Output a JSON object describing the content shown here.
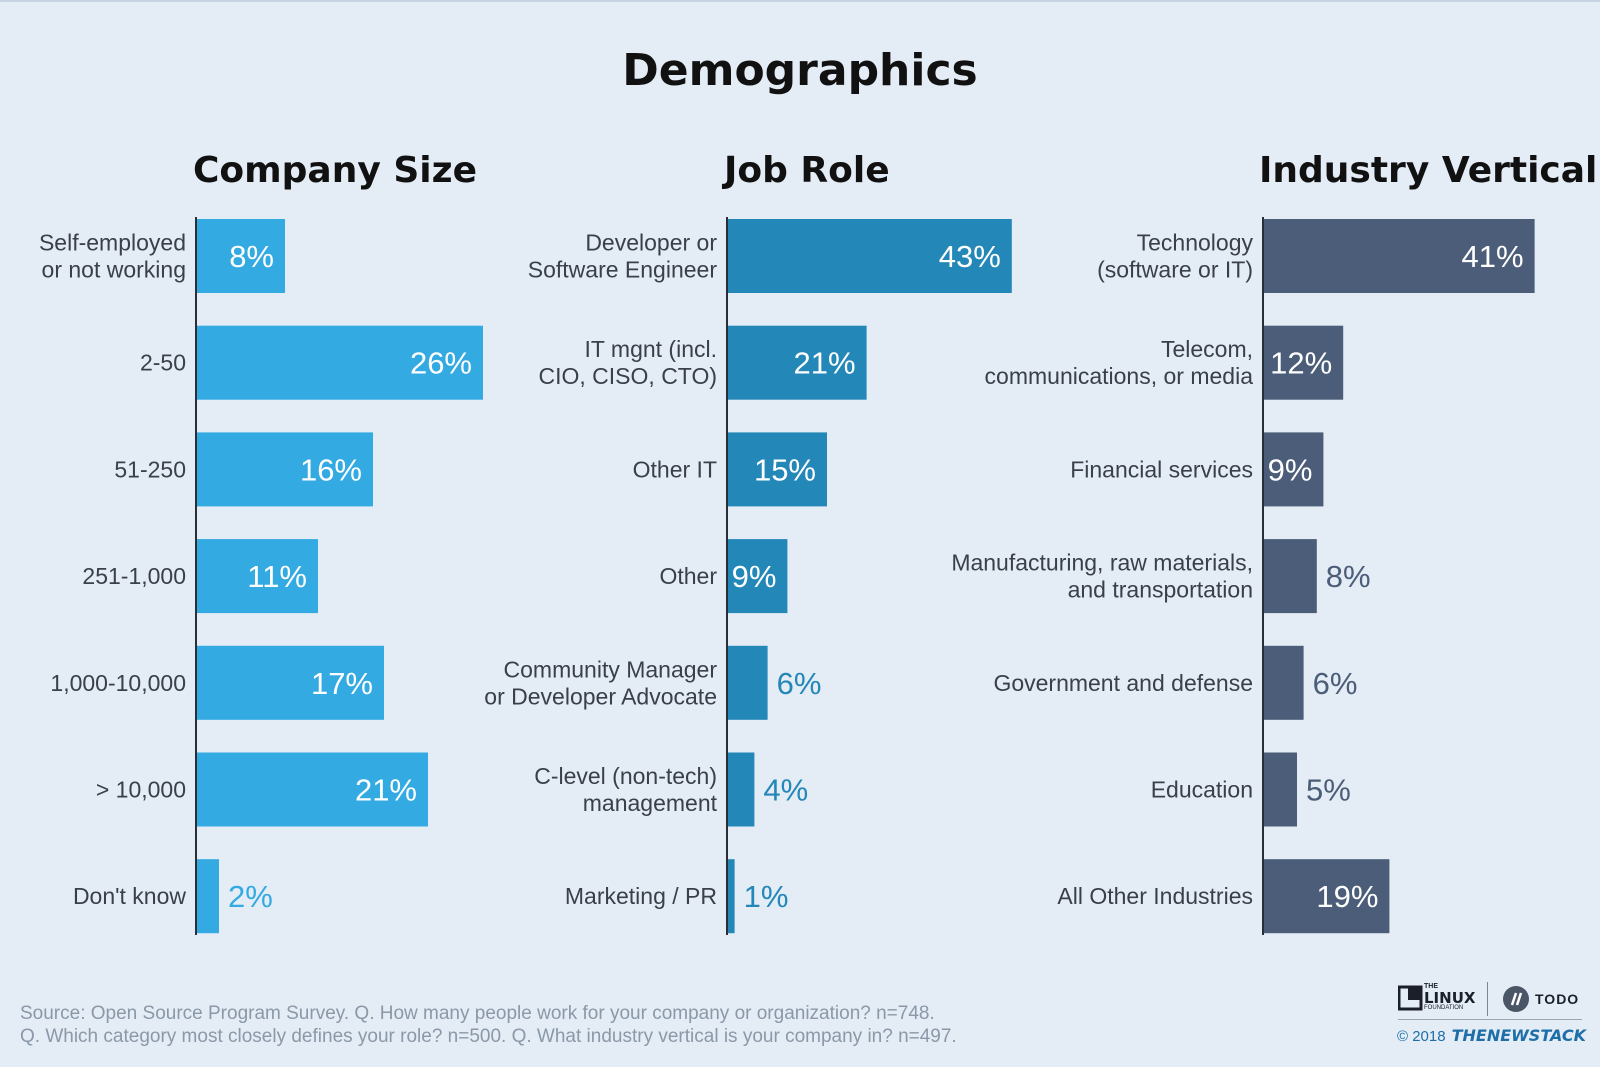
{
  "title": "Demographics",
  "colors": {
    "company_size": "#33aae2",
    "job_role": "#2387b8",
    "industry_vertical": "#4b5d78",
    "label_text": "#3a3f48",
    "value_inside": "#ffffff"
  },
  "chart_data": [
    {
      "type": "bar",
      "orientation": "horizontal",
      "title": "Company Size",
      "categories": [
        "Self-employed\nor not working",
        "2-50",
        "51-250",
        "251-1,000",
        "1,000-10,000",
        "> 10,000",
        "Don't know"
      ],
      "values": [
        8,
        26,
        16,
        11,
        17,
        21,
        2
      ],
      "value_labels": [
        "8%",
        "26%",
        "16%",
        "11%",
        "17%",
        "21%",
        "2%"
      ]
    },
    {
      "type": "bar",
      "orientation": "horizontal",
      "title": "Job Role",
      "categories": [
        "Developer or\nSoftware Engineer",
        "IT mgnt (incl.\nCIO, CISO, CTO)",
        "Other IT",
        "Other",
        "Community Manager\nor Developer Advocate",
        "C-level (non-tech)\nmanagement",
        "Marketing / PR"
      ],
      "values": [
        43,
        21,
        15,
        9,
        6,
        4,
        1
      ],
      "value_labels": [
        "43%",
        "21%",
        "15%",
        "9%",
        "6%",
        "4%",
        "1%"
      ]
    },
    {
      "type": "bar",
      "orientation": "horizontal",
      "title": "Industry Vertical",
      "categories": [
        "Technology\n(software or IT)",
        "Telecom,\ncommunications, or media",
        "Financial services",
        "Manufacturing, raw materials,\nand transportation",
        "Government and defense",
        "Education",
        "All Other Industries"
      ],
      "values": [
        41,
        12,
        9,
        8,
        6,
        5,
        19
      ],
      "value_labels": [
        "41%",
        "12%",
        "9%",
        "8%",
        "6%",
        "5%",
        "19%"
      ]
    }
  ],
  "footer": {
    "line1": "Source: Open Source Program Survey. Q. How many people work for your company or organization? n=748.",
    "line2": "Q. Which category most closely defines your role? n=500. Q. What industry vertical is your company in? n=497."
  },
  "branding": {
    "linux_the": "THE",
    "linux_name": "LINUX",
    "linux_foundation": "FOUNDATION",
    "todo": "TODO",
    "copyright": "© 2018",
    "newstack": "THENEWSTACK"
  }
}
